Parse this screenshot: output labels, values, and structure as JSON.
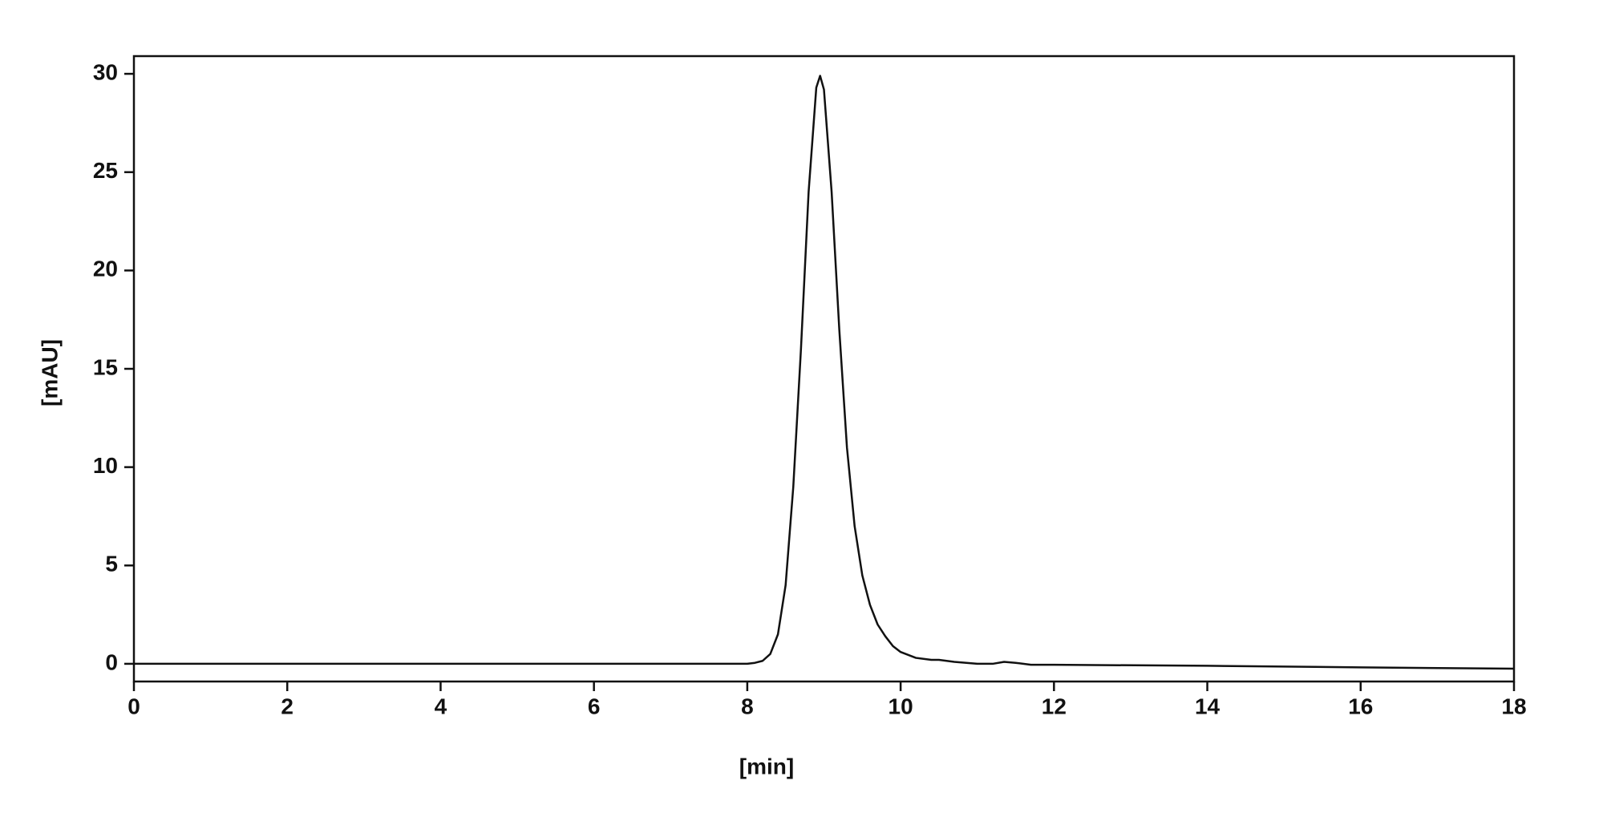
{
  "chart_data": {
    "type": "line",
    "x_label": "[min]",
    "y_label": "[mAU]",
    "x": [
      0,
      2,
      4,
      6,
      7.5,
      8.0,
      8.1,
      8.2,
      8.3,
      8.4,
      8.5,
      8.6,
      8.7,
      8.8,
      8.9,
      8.95,
      9.0,
      9.1,
      9.2,
      9.3,
      9.4,
      9.5,
      9.6,
      9.7,
      9.8,
      9.9,
      10.0,
      10.2,
      10.4,
      10.5,
      10.7,
      11.0,
      11.2,
      11.35,
      11.5,
      11.7,
      12,
      14,
      16,
      18
    ],
    "values": [
      0,
      0,
      0,
      0,
      0,
      0,
      0.05,
      0.15,
      0.5,
      1.5,
      4,
      9,
      16,
      24,
      29.3,
      29.9,
      29.2,
      24,
      17,
      11,
      7,
      4.5,
      3,
      2,
      1.4,
      0.9,
      0.6,
      0.3,
      0.2,
      0.2,
      0.1,
      0,
      0,
      0.1,
      0.05,
      -0.05,
      -0.05,
      -0.1,
      -0.18,
      -0.25
    ],
    "color": "#111111",
    "xlim": [
      0,
      18
    ],
    "xticks": [
      0,
      2,
      4,
      6,
      8,
      10,
      12,
      14,
      16,
      18
    ],
    "ylim": [
      -0.9,
      30.9
    ],
    "yticks": [
      0,
      5,
      10,
      15,
      20,
      25,
      30
    ],
    "grid": false
  }
}
